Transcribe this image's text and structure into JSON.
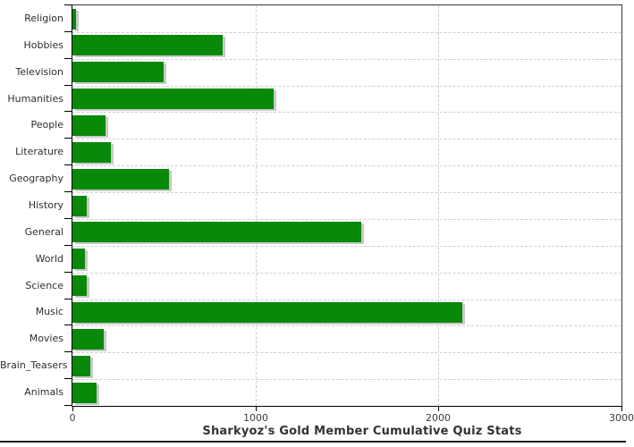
{
  "chart_data": {
    "type": "bar",
    "orientation": "horizontal",
    "title": "Sharkyoz's Gold Member Cumulative Quiz Stats",
    "categories": [
      "Religion",
      "Hobbies",
      "Television",
      "Humanities",
      "People",
      "Literature",
      "Geography",
      "History",
      "General",
      "World",
      "Science",
      "Music",
      "Movies",
      "Brain_Teasers",
      "Animals"
    ],
    "values": [
      18,
      820,
      500,
      1100,
      180,
      210,
      530,
      80,
      1580,
      70,
      80,
      2130,
      170,
      100,
      130
    ],
    "xlim": [
      0,
      3000
    ],
    "x_ticks": [
      "0",
      "1000",
      "2000",
      "3000"
    ],
    "xlabel": "",
    "ylabel": "",
    "grid": "dashed-light-gray",
    "legend": "none",
    "bar_color": "#098909",
    "bar_shadow_color": "#c9c9c9",
    "background": "#ffffff"
  }
}
